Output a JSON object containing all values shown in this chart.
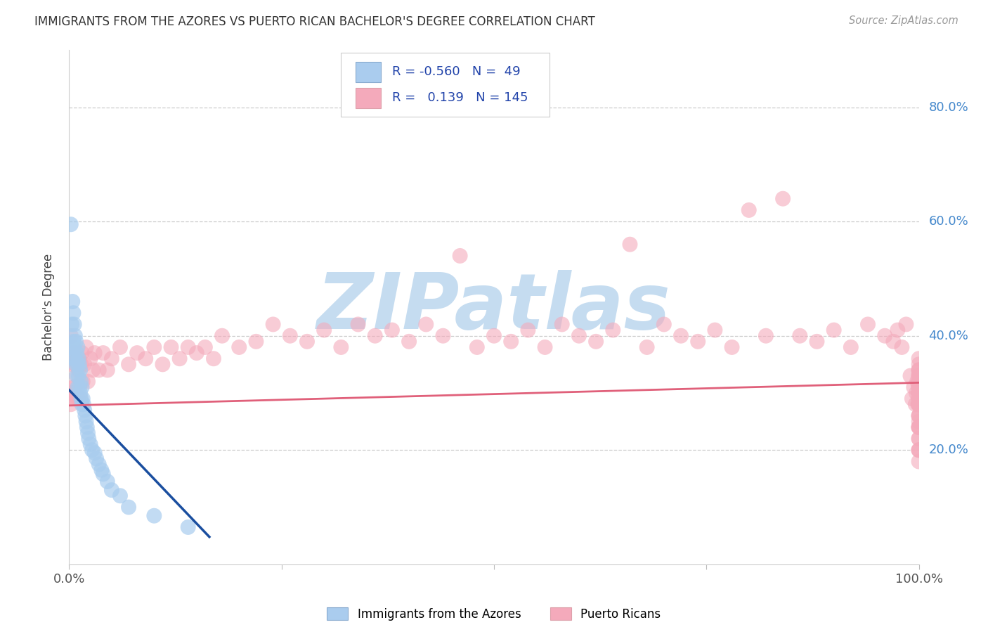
{
  "title": "IMMIGRANTS FROM THE AZORES VS PUERTO RICAN BACHELOR'S DEGREE CORRELATION CHART",
  "source": "Source: ZipAtlas.com",
  "ylabel": "Bachelor's Degree",
  "r_azores": -0.56,
  "n_azores": 49,
  "r_puerto": 0.139,
  "n_puerto": 145,
  "ytick_labels": [
    "20.0%",
    "40.0%",
    "60.0%",
    "80.0%"
  ],
  "ytick_values": [
    0.2,
    0.4,
    0.6,
    0.8
  ],
  "xlim": [
    0.0,
    1.0
  ],
  "ylim": [
    0.0,
    0.9
  ],
  "color_azores": "#A8CCEE",
  "color_puerto": "#F4AABB",
  "line_color_azores": "#1A4E9F",
  "line_color_puerto": "#E0607A",
  "legend_swatch_azores": "#AACCEE",
  "legend_swatch_puerto": "#F4AABB",
  "watermark_color": "#C8DEEEFF",
  "background": "#FFFFFF",
  "azores_x": [
    0.002,
    0.003,
    0.004,
    0.004,
    0.005,
    0.005,
    0.005,
    0.006,
    0.006,
    0.007,
    0.007,
    0.008,
    0.008,
    0.009,
    0.009,
    0.01,
    0.01,
    0.01,
    0.011,
    0.011,
    0.012,
    0.012,
    0.013,
    0.013,
    0.014,
    0.014,
    0.015,
    0.015,
    0.016,
    0.017,
    0.018,
    0.019,
    0.02,
    0.021,
    0.022,
    0.023,
    0.025,
    0.027,
    0.03,
    0.032,
    0.035,
    0.038,
    0.04,
    0.045,
    0.05,
    0.06,
    0.07,
    0.1,
    0.14
  ],
  "azores_y": [
    0.595,
    0.42,
    0.46,
    0.38,
    0.44,
    0.39,
    0.36,
    0.42,
    0.38,
    0.4,
    0.36,
    0.39,
    0.35,
    0.37,
    0.33,
    0.38,
    0.35,
    0.31,
    0.36,
    0.33,
    0.35,
    0.31,
    0.34,
    0.3,
    0.32,
    0.29,
    0.31,
    0.28,
    0.29,
    0.28,
    0.27,
    0.26,
    0.25,
    0.24,
    0.23,
    0.22,
    0.21,
    0.2,
    0.195,
    0.185,
    0.175,
    0.165,
    0.158,
    0.145,
    0.13,
    0.12,
    0.1,
    0.085,
    0.065
  ],
  "puerto_x": [
    0.001,
    0.002,
    0.002,
    0.003,
    0.003,
    0.004,
    0.004,
    0.005,
    0.005,
    0.006,
    0.006,
    0.007,
    0.007,
    0.008,
    0.008,
    0.009,
    0.01,
    0.01,
    0.011,
    0.012,
    0.013,
    0.014,
    0.015,
    0.016,
    0.018,
    0.02,
    0.022,
    0.025,
    0.028,
    0.03,
    0.035,
    0.04,
    0.045,
    0.05,
    0.06,
    0.07,
    0.08,
    0.09,
    0.1,
    0.11,
    0.12,
    0.13,
    0.14,
    0.15,
    0.16,
    0.17,
    0.18,
    0.2,
    0.22,
    0.24,
    0.26,
    0.28,
    0.3,
    0.32,
    0.34,
    0.36,
    0.38,
    0.4,
    0.42,
    0.44,
    0.46,
    0.48,
    0.5,
    0.52,
    0.54,
    0.56,
    0.58,
    0.6,
    0.62,
    0.64,
    0.66,
    0.68,
    0.7,
    0.72,
    0.74,
    0.76,
    0.78,
    0.8,
    0.82,
    0.84,
    0.86,
    0.88,
    0.9,
    0.92,
    0.94,
    0.96,
    0.97,
    0.975,
    0.98,
    0.985,
    0.99,
    0.992,
    0.994,
    0.996,
    0.997,
    0.998,
    0.999,
    1.0,
    1.0,
    1.0,
    1.0,
    1.0,
    1.0,
    1.0,
    1.0,
    1.0,
    1.0,
    1.0,
    1.0,
    1.0,
    1.0,
    1.0,
    1.0,
    1.0,
    1.0,
    1.0,
    1.0,
    1.0,
    1.0,
    1.0,
    1.0,
    1.0,
    1.0,
    1.0,
    1.0,
    1.0,
    1.0,
    1.0,
    1.0,
    1.0,
    1.0,
    1.0,
    1.0,
    1.0,
    1.0,
    1.0,
    1.0,
    1.0,
    1.0,
    1.0,
    1.0,
    1.0,
    1.0,
    1.0,
    1.0
  ],
  "puerto_y": [
    0.36,
    0.4,
    0.28,
    0.35,
    0.3,
    0.38,
    0.31,
    0.36,
    0.29,
    0.37,
    0.31,
    0.35,
    0.29,
    0.36,
    0.3,
    0.33,
    0.36,
    0.29,
    0.34,
    0.36,
    0.29,
    0.35,
    0.37,
    0.32,
    0.35,
    0.38,
    0.32,
    0.36,
    0.34,
    0.37,
    0.34,
    0.37,
    0.34,
    0.36,
    0.38,
    0.35,
    0.37,
    0.36,
    0.38,
    0.35,
    0.38,
    0.36,
    0.38,
    0.37,
    0.38,
    0.36,
    0.4,
    0.38,
    0.39,
    0.42,
    0.4,
    0.39,
    0.41,
    0.38,
    0.42,
    0.4,
    0.41,
    0.39,
    0.42,
    0.4,
    0.54,
    0.38,
    0.4,
    0.39,
    0.41,
    0.38,
    0.42,
    0.4,
    0.39,
    0.41,
    0.56,
    0.38,
    0.42,
    0.4,
    0.39,
    0.41,
    0.38,
    0.62,
    0.4,
    0.64,
    0.4,
    0.39,
    0.41,
    0.38,
    0.42,
    0.4,
    0.39,
    0.41,
    0.38,
    0.42,
    0.33,
    0.29,
    0.31,
    0.28,
    0.3,
    0.32,
    0.28,
    0.31,
    0.33,
    0.29,
    0.31,
    0.28,
    0.3,
    0.32,
    0.28,
    0.31,
    0.33,
    0.29,
    0.31,
    0.28,
    0.3,
    0.32,
    0.35,
    0.33,
    0.36,
    0.31,
    0.34,
    0.29,
    0.32,
    0.3,
    0.34,
    0.29,
    0.32,
    0.3,
    0.34,
    0.29,
    0.26,
    0.3,
    0.28,
    0.24,
    0.26,
    0.3,
    0.28,
    0.24,
    0.2,
    0.22,
    0.18,
    0.25,
    0.22,
    0.26,
    0.24,
    0.2,
    0.28,
    0.24,
    0.2
  ],
  "line_azores_x0": 0.0,
  "line_azores_x1": 0.165,
  "line_azores_y0": 0.305,
  "line_azores_y1": 0.048,
  "line_puerto_x0": 0.0,
  "line_puerto_x1": 1.0,
  "line_puerto_y0": 0.278,
  "line_puerto_y1": 0.318
}
